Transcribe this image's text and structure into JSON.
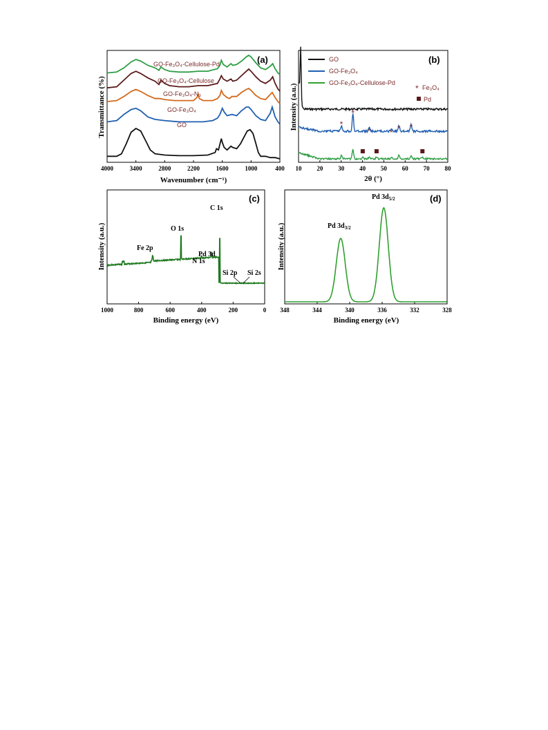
{
  "colors": {
    "GO": "#111111",
    "GO-Fe3O4": "#1f5fb0",
    "GO-Fe3O4-N3": "#d2691e",
    "GO-Fe3O4-Cellulose": "#5a1a1a",
    "GO-Fe3O4-Cellulose-Pd": "#2e9e44",
    "xps": "#1f7a1f",
    "pd3d": "#2ea02e",
    "marker": "#7a2a3a"
  },
  "chart_data": [
    {
      "panel": "(a)",
      "type": "line",
      "xlabel": "Wavenumber (cm⁻¹)",
      "ylabel": "Transmittance (%)",
      "xlim": [
        4000,
        400
      ],
      "x_ticks": [
        "4000",
        "3400",
        "2800",
        "2200",
        "1600",
        "1000",
        "400"
      ],
      "x_tick_values": [
        4000,
        3400,
        2800,
        2200,
        1600,
        1000,
        400
      ],
      "series": [
        {
          "name": "GO",
          "offset": 0,
          "points": [
            [
              4000,
              50
            ],
            [
              3800,
              50
            ],
            [
              3700,
              46
            ],
            [
              3600,
              30
            ],
            [
              3500,
              12
            ],
            [
              3400,
              6
            ],
            [
              3300,
              10
            ],
            [
              3200,
              25
            ],
            [
              3100,
              40
            ],
            [
              3000,
              46
            ],
            [
              2800,
              48
            ],
            [
              2500,
              49
            ],
            [
              2200,
              49
            ],
            [
              1900,
              48
            ],
            [
              1750,
              44
            ],
            [
              1720,
              38
            ],
            [
              1680,
              40
            ],
            [
              1620,
              22
            ],
            [
              1600,
              28
            ],
            [
              1560,
              36
            ],
            [
              1500,
              40
            ],
            [
              1420,
              34
            ],
            [
              1380,
              36
            ],
            [
              1300,
              38
            ],
            [
              1220,
              30
            ],
            [
              1150,
              20
            ],
            [
              1080,
              10
            ],
            [
              1020,
              8
            ],
            [
              960,
              14
            ],
            [
              900,
              30
            ],
            [
              850,
              44
            ],
            [
              800,
              50
            ],
            [
              700,
              50
            ],
            [
              600,
              52
            ],
            [
              500,
              52
            ],
            [
              400,
              54
            ]
          ]
        },
        {
          "name": "GO-Fe3O4",
          "offset": 0,
          "points": [
            [
              4000,
              84
            ],
            [
              3800,
              82
            ],
            [
              3650,
              72
            ],
            [
              3500,
              64
            ],
            [
              3400,
              62
            ],
            [
              3300,
              66
            ],
            [
              3150,
              76
            ],
            [
              3000,
              80
            ],
            [
              2800,
              82
            ],
            [
              2500,
              84
            ],
            [
              2300,
              84
            ],
            [
              2000,
              84
            ],
            [
              1800,
              82
            ],
            [
              1700,
              78
            ],
            [
              1650,
              72
            ],
            [
              1600,
              62
            ],
            [
              1560,
              68
            ],
            [
              1500,
              74
            ],
            [
              1400,
              72
            ],
            [
              1300,
              74
            ],
            [
              1200,
              66
            ],
            [
              1100,
              60
            ],
            [
              1050,
              60
            ],
            [
              1000,
              64
            ],
            [
              900,
              74
            ],
            [
              800,
              80
            ],
            [
              700,
              82
            ],
            [
              600,
              70
            ],
            [
              560,
              60
            ],
            [
              500,
              76
            ],
            [
              440,
              84
            ],
            [
              400,
              88
            ]
          ]
        },
        {
          "name": "GO-Fe3O4-N3",
          "offset": 0,
          "points": [
            [
              4000,
              118
            ],
            [
              3800,
              116
            ],
            [
              3650,
              108
            ],
            [
              3500,
              98
            ],
            [
              3400,
              94
            ],
            [
              3300,
              98
            ],
            [
              3150,
              106
            ],
            [
              3000,
              112
            ],
            [
              2900,
              112
            ],
            [
              2800,
              114
            ],
            [
              2600,
              116
            ],
            [
              2400,
              116
            ],
            [
              2200,
              116
            ],
            [
              2130,
              110
            ],
            [
              2100,
              104
            ],
            [
              2080,
              112
            ],
            [
              2000,
              116
            ],
            [
              1800,
              116
            ],
            [
              1700,
              112
            ],
            [
              1650,
              106
            ],
            [
              1620,
              96
            ],
            [
              1580,
              104
            ],
            [
              1500,
              110
            ],
            [
              1450,
              112
            ],
            [
              1400,
              108
            ],
            [
              1300,
              108
            ],
            [
              1200,
              100
            ],
            [
              1100,
              94
            ],
            [
              1050,
              92
            ],
            [
              1000,
              96
            ],
            [
              900,
              106
            ],
            [
              800,
              112
            ],
            [
              700,
              114
            ],
            [
              600,
              104
            ],
            [
              560,
              100
            ],
            [
              500,
              110
            ],
            [
              440,
              118
            ],
            [
              400,
              122
            ]
          ]
        },
        {
          "name": "GO-Fe3O4-Cellulose",
          "offset": 0,
          "points": [
            [
              4000,
              146
            ],
            [
              3800,
              144
            ],
            [
              3650,
              132
            ],
            [
              3500,
              120
            ],
            [
              3400,
              116
            ],
            [
              3300,
              120
            ],
            [
              3150,
              128
            ],
            [
              3000,
              134
            ],
            [
              2920,
              140
            ],
            [
              2880,
              132
            ],
            [
              2800,
              138
            ],
            [
              2700,
              142
            ],
            [
              2500,
              144
            ],
            [
              2300,
              144
            ],
            [
              2100,
              142
            ],
            [
              1900,
              142
            ],
            [
              1700,
              138
            ],
            [
              1650,
              130
            ],
            [
              1620,
              124
            ],
            [
              1580,
              130
            ],
            [
              1500,
              134
            ],
            [
              1420,
              130
            ],
            [
              1380,
              134
            ],
            [
              1300,
              132
            ],
            [
              1200,
              124
            ],
            [
              1100,
              116
            ],
            [
              1050,
              112
            ],
            [
              1000,
              116
            ],
            [
              900,
              126
            ],
            [
              800,
              134
            ],
            [
              700,
              138
            ],
            [
              600,
              132
            ],
            [
              550,
              126
            ],
            [
              500,
              138
            ],
            [
              440,
              148
            ],
            [
              400,
              152
            ]
          ]
        },
        {
          "name": "GO-Fe3O4-Cellulose-Pd",
          "offset": 0,
          "points": [
            [
              4000,
              180
            ],
            [
              3800,
              178
            ],
            [
              3650,
              168
            ],
            [
              3500,
              154
            ],
            [
              3400,
              148
            ],
            [
              3300,
              152
            ],
            [
              3150,
              162
            ],
            [
              3000,
              168
            ],
            [
              2920,
              174
            ],
            [
              2880,
              166
            ],
            [
              2800,
              172
            ],
            [
              2700,
              176
            ],
            [
              2500,
              178
            ],
            [
              2300,
              178
            ],
            [
              2100,
              176
            ],
            [
              1900,
              176
            ],
            [
              1700,
              170
            ],
            [
              1650,
              162
            ],
            [
              1620,
              150
            ],
            [
              1580,
              160
            ],
            [
              1500,
              166
            ],
            [
              1420,
              158
            ],
            [
              1380,
              162
            ],
            [
              1300,
              160
            ],
            [
              1200,
              152
            ],
            [
              1100,
              142
            ],
            [
              1050,
              138
            ],
            [
              1000,
              142
            ],
            [
              900,
              156
            ],
            [
              800,
              168
            ],
            [
              700,
              172
            ],
            [
              600,
              164
            ],
            [
              550,
              158
            ],
            [
              500,
              170
            ],
            [
              440,
              180
            ],
            [
              400,
              184
            ]
          ]
        }
      ],
      "labels": [
        "GO",
        "GO-Fe₃O₄",
        "GO-Fe₃O₄-N₃",
        "GO-Fe₃O₄-Cellulose",
        "GO-Fe₃O₄-Cellulose-Pd"
      ]
    },
    {
      "panel": "(b)",
      "type": "line",
      "xlabel": "2θ (°)",
      "ylabel": "Intensity (a.u.)",
      "xlim": [
        10,
        80
      ],
      "x_ticks": [
        "10",
        "20",
        "30",
        "40",
        "50",
        "60",
        "70",
        "80"
      ],
      "x_tick_values": [
        10,
        20,
        30,
        40,
        50,
        60,
        70,
        80
      ],
      "legend": [
        "GO",
        "GO-Fe₃O₄",
        "GO-Fe₃O₄-Cellulose-Pd"
      ],
      "marker_legend": [
        "Fe₃O₄",
        "Pd"
      ],
      "fe3o4_peaks": [
        30.1,
        35.5,
        43.2,
        53.5,
        57.1,
        62.8
      ],
      "pd_peaks": [
        40.1,
        46.6,
        68.1
      ]
    },
    {
      "panel": "(c)",
      "type": "line",
      "xlabel": "Binding energy (eV)",
      "ylabel": "Intensity (a.u.)",
      "xlim": [
        1000,
        0
      ],
      "x_ticks": [
        "1000",
        "800",
        "600",
        "400",
        "200",
        "0"
      ],
      "x_tick_values": [
        1000,
        800,
        600,
        400,
        200,
        0
      ],
      "peak_labels": [
        {
          "text": "Fe 2p",
          "x": 711
        },
        {
          "text": "O 1s",
          "x": 531
        },
        {
          "text": "N 1s",
          "x": 400
        },
        {
          "text": "Pd 3d",
          "x": 336
        },
        {
          "text": "C 1s",
          "x": 285
        },
        {
          "text": "Si 2p",
          "x": 153
        },
        {
          "text": "Si 2s",
          "x": 102
        }
      ]
    },
    {
      "panel": "(d)",
      "type": "line",
      "xlabel": "Binding energy (eV)",
      "ylabel": "Intensity (a.u.)",
      "xlim": [
        348,
        328
      ],
      "x_ticks": [
        "348",
        "344",
        "340",
        "336",
        "332",
        "328"
      ],
      "x_tick_values": [
        348,
        344,
        340,
        336,
        332,
        328
      ],
      "peaks": [
        {
          "label": "Pd 3d3/2",
          "center": 341.1,
          "height": 0.62
        },
        {
          "label": "Pd 3d5/2",
          "center": 335.8,
          "height": 0.92
        }
      ]
    }
  ]
}
